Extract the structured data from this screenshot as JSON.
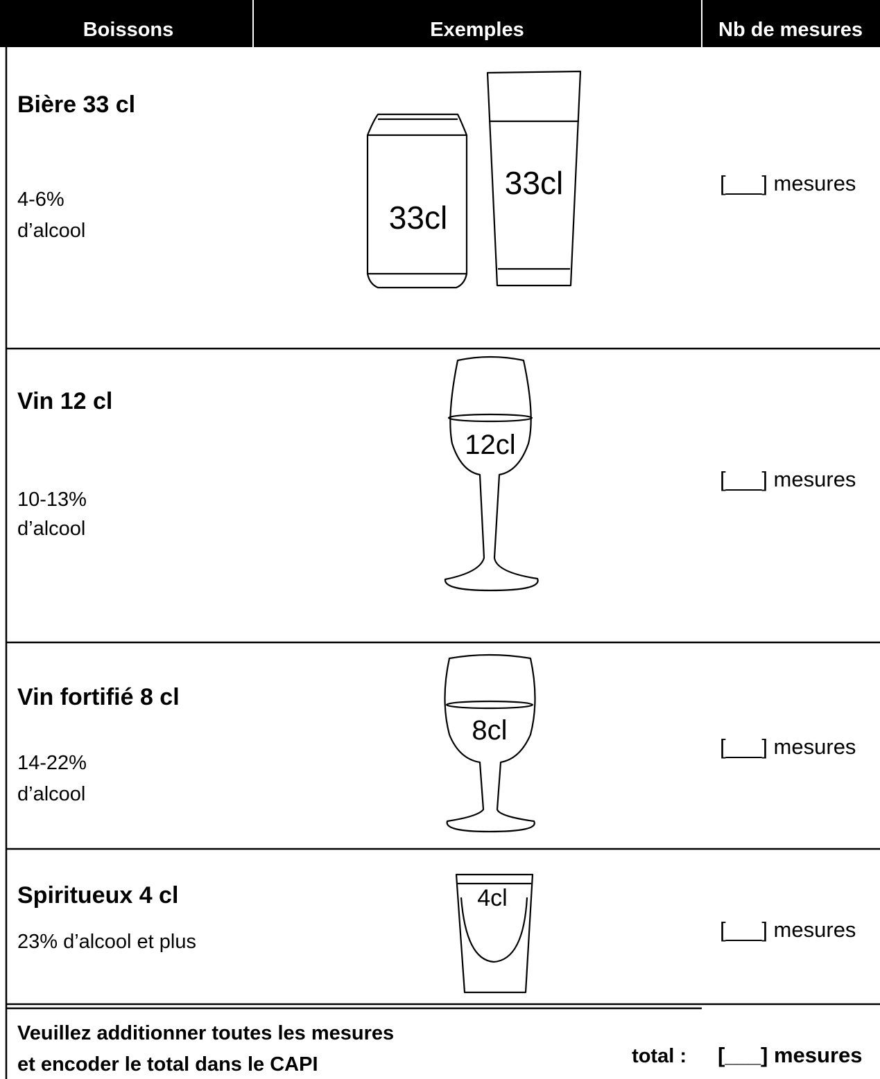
{
  "table": {
    "headers": [
      "Boissons",
      "Exemples",
      "Nb de mesures"
    ],
    "rows": [
      {
        "name": "Bière 33 cl",
        "alcohol": [
          "4-6%",
          "d’alcool"
        ],
        "example_labels": [
          "33cl",
          "33cl"
        ],
        "count": "[___] mesures"
      },
      {
        "name": "Vin 12 cl",
        "alcohol": [
          "10-13%",
          "d’alcool"
        ],
        "example_labels": [
          "12cl"
        ],
        "count": "[___] mesures"
      },
      {
        "name": "Vin fortifié 8 cl",
        "alcohol": [
          "14-22%",
          "d’alcool"
        ],
        "example_labels": [
          "8cl"
        ],
        "count": "[___] mesures"
      },
      {
        "name": "Spiritueux 4 cl",
        "alcohol": [
          "23% d’alcool et plus"
        ],
        "example_labels": [
          "4cl"
        ],
        "count": "[___] mesures"
      }
    ]
  },
  "footer": {
    "instruction": [
      "Veuillez additionner toutes les mesures",
      "et encoder le total dans le CAPI"
    ],
    "total_label": "total :",
    "total_count": "[___] mesures"
  }
}
